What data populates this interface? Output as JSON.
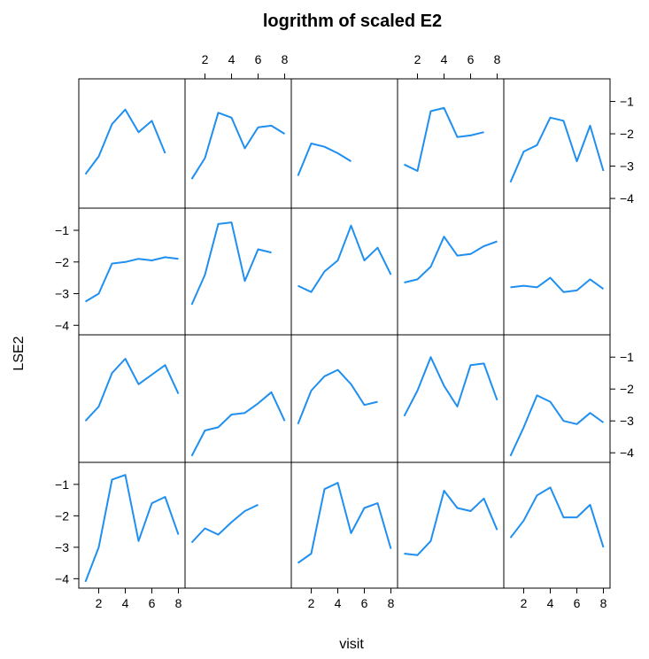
{
  "chart_data": {
    "type": "line",
    "title": "logrithm of scaled E2",
    "xlabel": "visit",
    "ylabel": "LSE2",
    "layout": {
      "columns": 5,
      "rows": 4
    },
    "xlim": [
      0.5,
      8.5
    ],
    "ylim": [
      -4.3,
      -0.3
    ],
    "x_ticks": [
      2,
      4,
      6,
      8
    ],
    "y_ticks": [
      -1,
      -2,
      -3,
      -4
    ],
    "y_tick_labels": [
      "−1",
      "−2",
      "−3",
      "−4"
    ],
    "line_color": "#1f8ff0",
    "panels": [
      {
        "row": 1,
        "col": 1,
        "x": [
          1,
          2,
          3,
          4,
          5,
          6,
          7
        ],
        "y": [
          -3.25,
          -2.7,
          -1.7,
          -1.25,
          -1.95,
          -1.6,
          -2.6
        ]
      },
      {
        "row": 1,
        "col": 2,
        "x": [
          1,
          2,
          3,
          4,
          5,
          6,
          7,
          8
        ],
        "y": [
          -3.4,
          -2.75,
          -1.35,
          -1.5,
          -2.45,
          -1.8,
          -1.75,
          -2.0
        ]
      },
      {
        "row": 1,
        "col": 3,
        "x": [
          1,
          2,
          3,
          4,
          5
        ],
        "y": [
          -3.3,
          -2.3,
          -2.4,
          -2.6,
          -2.85
        ]
      },
      {
        "row": 1,
        "col": 4,
        "x": [
          1,
          2,
          3,
          4,
          5,
          6,
          7
        ],
        "y": [
          -2.95,
          -3.15,
          -1.3,
          -1.2,
          -2.1,
          -2.05,
          -1.95
        ]
      },
      {
        "row": 1,
        "col": 5,
        "x": [
          1,
          2,
          3,
          4,
          5,
          6,
          7,
          8
        ],
        "y": [
          -3.5,
          -2.55,
          -2.35,
          -1.5,
          -1.6,
          -2.85,
          -1.75,
          -3.15
        ]
      },
      {
        "row": 2,
        "col": 1,
        "x": [
          1,
          2,
          3,
          4,
          5,
          6,
          7,
          8
        ],
        "y": [
          -3.25,
          -3.0,
          -2.05,
          -2.0,
          -1.9,
          -1.95,
          -1.85,
          -1.9
        ]
      },
      {
        "row": 2,
        "col": 2,
        "x": [
          1,
          2,
          3,
          4,
          5,
          6,
          7
        ],
        "y": [
          -3.35,
          -2.4,
          -0.8,
          -0.75,
          -2.6,
          -1.6,
          -1.7
        ]
      },
      {
        "row": 2,
        "col": 3,
        "x": [
          1,
          2,
          3,
          4,
          5,
          6,
          7,
          8
        ],
        "y": [
          -2.75,
          -2.95,
          -2.3,
          -1.95,
          -0.85,
          -1.95,
          -1.55,
          -2.4
        ]
      },
      {
        "row": 2,
        "col": 4,
        "x": [
          1,
          2,
          3,
          4,
          5,
          6,
          7,
          8
        ],
        "y": [
          -2.65,
          -2.55,
          -2.15,
          -1.2,
          -1.8,
          -1.75,
          -1.5,
          -1.35
        ]
      },
      {
        "row": 2,
        "col": 5,
        "x": [
          1,
          2,
          3,
          4,
          5,
          6,
          7,
          8
        ],
        "y": [
          -2.8,
          -2.75,
          -2.8,
          -2.5,
          -2.95,
          -2.9,
          -2.55,
          -2.85
        ]
      },
      {
        "row": 3,
        "col": 1,
        "x": [
          1,
          2,
          3,
          4,
          5,
          6,
          7,
          8
        ],
        "y": [
          -3.0,
          -2.55,
          -1.5,
          -1.05,
          -1.85,
          -1.55,
          -1.25,
          -2.15
        ]
      },
      {
        "row": 3,
        "col": 2,
        "x": [
          1,
          2,
          3,
          4,
          5,
          6,
          7,
          8
        ],
        "y": [
          -4.1,
          -3.3,
          -3.2,
          -2.8,
          -2.75,
          -2.45,
          -2.1,
          -3.0
        ]
      },
      {
        "row": 3,
        "col": 3,
        "x": [
          1,
          2,
          3,
          4,
          5,
          6,
          7
        ],
        "y": [
          -3.1,
          -2.05,
          -1.6,
          -1.4,
          -1.85,
          -2.5,
          -2.4
        ]
      },
      {
        "row": 3,
        "col": 4,
        "x": [
          1,
          2,
          3,
          4,
          5,
          6,
          7,
          8
        ],
        "y": [
          -2.85,
          -2.05,
          -1.0,
          -1.9,
          -2.55,
          -1.25,
          -1.2,
          -2.35
        ]
      },
      {
        "row": 3,
        "col": 5,
        "x": [
          1,
          2,
          3,
          4,
          5,
          6,
          7,
          8
        ],
        "y": [
          -4.1,
          -3.2,
          -2.2,
          -2.4,
          -3.0,
          -3.1,
          -2.75,
          -3.05
        ]
      },
      {
        "row": 4,
        "col": 1,
        "x": [
          1,
          2,
          3,
          4,
          5,
          6,
          7,
          8
        ],
        "y": [
          -4.1,
          -3.0,
          -0.85,
          -0.7,
          -2.8,
          -1.6,
          -1.4,
          -2.6
        ]
      },
      {
        "row": 4,
        "col": 2,
        "x": [
          1,
          2,
          3,
          4,
          5,
          6
        ],
        "y": [
          -2.85,
          -2.4,
          -2.6,
          -2.2,
          -1.85,
          -1.65
        ]
      },
      {
        "row": 4,
        "col": 3,
        "x": [
          1,
          2,
          3,
          4,
          5,
          6,
          7,
          8
        ],
        "y": [
          -3.5,
          -3.2,
          -1.15,
          -0.95,
          -2.55,
          -1.75,
          -1.6,
          -3.05
        ]
      },
      {
        "row": 4,
        "col": 4,
        "x": [
          1,
          2,
          3,
          4,
          5,
          6,
          7,
          8
        ],
        "y": [
          -3.2,
          -3.25,
          -2.8,
          -1.2,
          -1.75,
          -1.85,
          -1.45,
          -2.45
        ]
      },
      {
        "row": 4,
        "col": 5,
        "x": [
          1,
          2,
          3,
          4,
          5,
          6,
          7,
          8
        ],
        "y": [
          -2.7,
          -2.15,
          -1.35,
          -1.1,
          -2.05,
          -2.05,
          -1.65,
          -3.0
        ]
      }
    ]
  }
}
